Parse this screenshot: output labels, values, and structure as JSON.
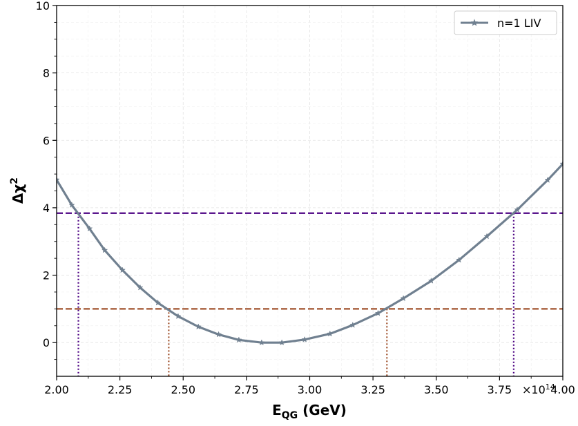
{
  "chart_data": {
    "type": "line",
    "xlabel_main": "E",
    "xlabel_sub": "QG",
    "xlabel_unit": " (GeV)",
    "ylabel_main": "Δχ",
    "ylabel_sup": "2",
    "offset_text": "×10",
    "offset_exp": "14",
    "xlim": [
      2.0,
      4.0
    ],
    "ylim": [
      -1,
      10
    ],
    "x_ticks": [
      "2.00",
      "2.25",
      "2.50",
      "2.75",
      "3.00",
      "3.25",
      "3.50",
      "3.75",
      "4.00"
    ],
    "y_ticks": [
      "0",
      "2",
      "4",
      "6",
      "8",
      "10"
    ],
    "grid": true,
    "legend_position": "top-right",
    "series": [
      {
        "name": "n=1 LIV",
        "color": "#708090",
        "marker": "star",
        "x": [
          2.0,
          2.06,
          2.13,
          2.19,
          2.26,
          2.33,
          2.4,
          2.48,
          2.56,
          2.64,
          2.72,
          2.81,
          2.89,
          2.98,
          3.08,
          3.17,
          3.27,
          3.37,
          3.48,
          3.59,
          3.7,
          3.82,
          3.94,
          4.0
        ],
        "y": [
          4.83,
          4.08,
          3.38,
          2.74,
          2.15,
          1.63,
          1.18,
          0.78,
          0.47,
          0.24,
          0.08,
          0.0,
          0.0,
          0.09,
          0.26,
          0.52,
          0.87,
          1.31,
          1.83,
          2.45,
          3.15,
          3.94,
          4.82,
          5.3
        ]
      }
    ],
    "reference_lines": {
      "horizontal": [
        {
          "y": 3.84,
          "color": "#4B0082",
          "style": "dashed"
        },
        {
          "y": 1.0,
          "color": "#A0522D",
          "style": "dashed"
        }
      ],
      "vertical": [
        {
          "x": 2.086,
          "y_top": 3.84,
          "color": "#4B0082",
          "style": "dotted"
        },
        {
          "x": 3.806,
          "y_top": 3.84,
          "color": "#4B0082",
          "style": "dotted"
        },
        {
          "x": 2.443,
          "y_top": 1.0,
          "color": "#A0522D",
          "style": "dotted"
        },
        {
          "x": 3.305,
          "y_top": 1.0,
          "color": "#A0522D",
          "style": "dotted"
        }
      ]
    }
  }
}
